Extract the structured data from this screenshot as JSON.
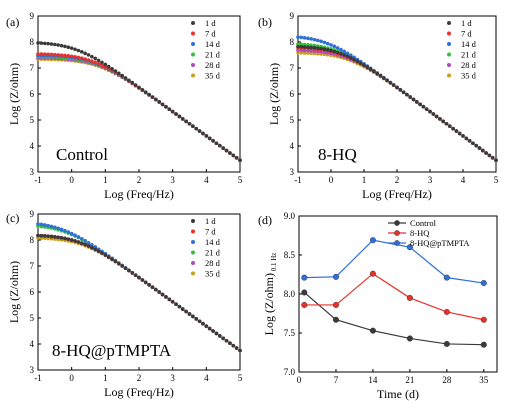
{
  "figure": {
    "panel_labels": [
      "(a)",
      "(b)",
      "(c)",
      "(d)"
    ],
    "insets": [
      "Control",
      "8-HQ",
      "8-HQ@pTMPTA"
    ]
  },
  "chart_data": [
    {
      "type": "scatter",
      "panel": "(a)",
      "inset": "Control",
      "xlabel": "Log (Freq/Hz)",
      "ylabel": "Log (Z/ohm)",
      "xlim": [
        -1,
        5
      ],
      "ylim": [
        3,
        9
      ],
      "xticks": [
        "-1",
        "0",
        "1",
        "2",
        "3",
        "4",
        "5"
      ],
      "yticks": [
        "3",
        "4",
        "5",
        "6",
        "7",
        "8",
        "9"
      ],
      "legend_position": "top-right",
      "series": [
        {
          "name": "1 d",
          "color": "#3a3a3a",
          "plateau": 8.0
        },
        {
          "name": "7 d",
          "color": "#e8312b",
          "plateau": 7.55
        },
        {
          "name": "14 d",
          "color": "#2f6fd6",
          "plateau": 7.5
        },
        {
          "name": "21 d",
          "color": "#33c13b",
          "plateau": 7.45
        },
        {
          "name": "28 d",
          "color": "#b04ac4",
          "plateau": 7.4
        },
        {
          "name": "35 d",
          "color": "#c9a019",
          "plateau": 7.35
        }
      ],
      "high_freq_line": [
        [
          1,
          7.2
        ],
        [
          5,
          3.45
        ]
      ]
    },
    {
      "type": "scatter",
      "panel": "(b)",
      "inset": "8-HQ",
      "xlabel": "Log (Freq/Hz)",
      "ylabel": "Log (Z/ohm)",
      "xlim": [
        -1,
        5
      ],
      "ylim": [
        3,
        9
      ],
      "xticks": [
        "-1",
        "0",
        "1",
        "2",
        "3",
        "4",
        "5"
      ],
      "yticks": [
        "3",
        "4",
        "5",
        "6",
        "7",
        "8",
        "9"
      ],
      "legend_position": "top-right",
      "series": [
        {
          "name": "1 d",
          "color": "#3a3a3a",
          "plateau": 7.85
        },
        {
          "name": "7 d",
          "color": "#e8312b",
          "plateau": 7.8
        },
        {
          "name": "14 d",
          "color": "#2f6fd6",
          "plateau": 8.25
        },
        {
          "name": "21 d",
          "color": "#33c13b",
          "plateau": 7.95
        },
        {
          "name": "28 d",
          "color": "#b04ac4",
          "plateau": 7.7
        },
        {
          "name": "35 d",
          "color": "#c9a019",
          "plateau": 7.6
        }
      ],
      "high_freq_line": [
        [
          1,
          7.2
        ],
        [
          5,
          3.45
        ]
      ]
    },
    {
      "type": "scatter",
      "panel": "(c)",
      "inset": "8-HQ@pTMPTA",
      "xlabel": "Log (Freq/Hz)",
      "ylabel": "Log (Z/ohm)",
      "xlim": [
        -1,
        5
      ],
      "ylim": [
        3,
        9
      ],
      "xticks": [
        "-1",
        "0",
        "1",
        "2",
        "3",
        "4",
        "5"
      ],
      "yticks": [
        "3",
        "4",
        "5",
        "6",
        "7",
        "8",
        "9"
      ],
      "legend_position": "top-right",
      "series": [
        {
          "name": "1 d",
          "color": "#3a3a3a",
          "plateau": 8.2
        },
        {
          "name": "7 d",
          "color": "#e8312b",
          "plateau": 8.2
        },
        {
          "name": "14 d",
          "color": "#2f6fd6",
          "plateau": 8.7
        },
        {
          "name": "21 d",
          "color": "#33c13b",
          "plateau": 8.6
        },
        {
          "name": "28 d",
          "color": "#b04ac4",
          "plateau": 8.2
        },
        {
          "name": "35 d",
          "color": "#c9a019",
          "plateau": 8.1
        }
      ],
      "high_freq_line": [
        [
          1,
          7.5
        ],
        [
          5,
          3.75
        ]
      ]
    },
    {
      "type": "line",
      "panel": "(d)",
      "xlabel": "Time (d)",
      "ylabel": "Log (Z/ohm)",
      "ylabel_sub": "0.1 Hz",
      "xlim": [
        0,
        37.5
      ],
      "ylim": [
        7.0,
        9.0
      ],
      "xticks": [
        "0",
        "7",
        "14",
        "21",
        "28",
        "35"
      ],
      "yticks": [
        "7.0",
        "7.5",
        "8.0",
        "8.5",
        "9.0"
      ],
      "legend_position": "top-left",
      "x": [
        1,
        7,
        14,
        21,
        28,
        35
      ],
      "series": [
        {
          "name": "Control",
          "color": "#3a3a3a",
          "values": [
            8.02,
            7.67,
            7.53,
            7.43,
            7.36,
            7.35
          ]
        },
        {
          "name": "8-HQ",
          "color": "#e8312b",
          "values": [
            7.86,
            7.86,
            8.26,
            7.95,
            7.77,
            7.67
          ]
        },
        {
          "name": "8-HQ@pTMPTA",
          "color": "#2f6fd6",
          "values": [
            8.21,
            8.22,
            8.69,
            8.6,
            8.21,
            8.14
          ]
        }
      ]
    }
  ]
}
